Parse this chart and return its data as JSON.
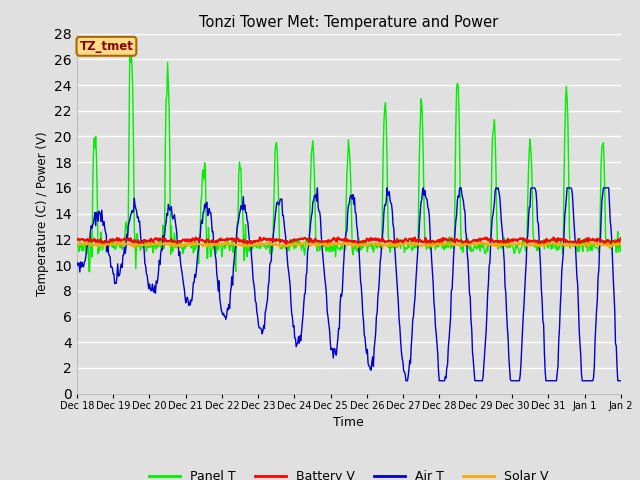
{
  "title": "Tonzi Tower Met: Temperature and Power",
  "xlabel": "Time",
  "ylabel": "Temperature (C) / Power (V)",
  "ylim": [
    0,
    28
  ],
  "yticks": [
    0,
    2,
    4,
    6,
    8,
    10,
    12,
    14,
    16,
    18,
    20,
    22,
    24,
    26,
    28
  ],
  "bg_color": "#e0e0e0",
  "plot_bg_color": "#e0e0e0",
  "grid_color": "#ffffff",
  "annotation_text": "TZ_tmet",
  "annotation_fg": "#880000",
  "annotation_bg": "#ffdd88",
  "annotation_border": "#aa6600",
  "legend_entries": [
    "Panel T",
    "Battery V",
    "Air T",
    "Solar V"
  ],
  "legend_colors": [
    "#00ee00",
    "#ff0000",
    "#0000cc",
    "#ffaa00"
  ],
  "line_colors": {
    "panel_t": "#00ee00",
    "battery_v": "#ff0000",
    "air_t": "#0000cc",
    "solar_v": "#ffaa00"
  },
  "battery_v_base": 11.9,
  "solar_v_base": 11.6,
  "num_points": 720,
  "num_days": 15
}
